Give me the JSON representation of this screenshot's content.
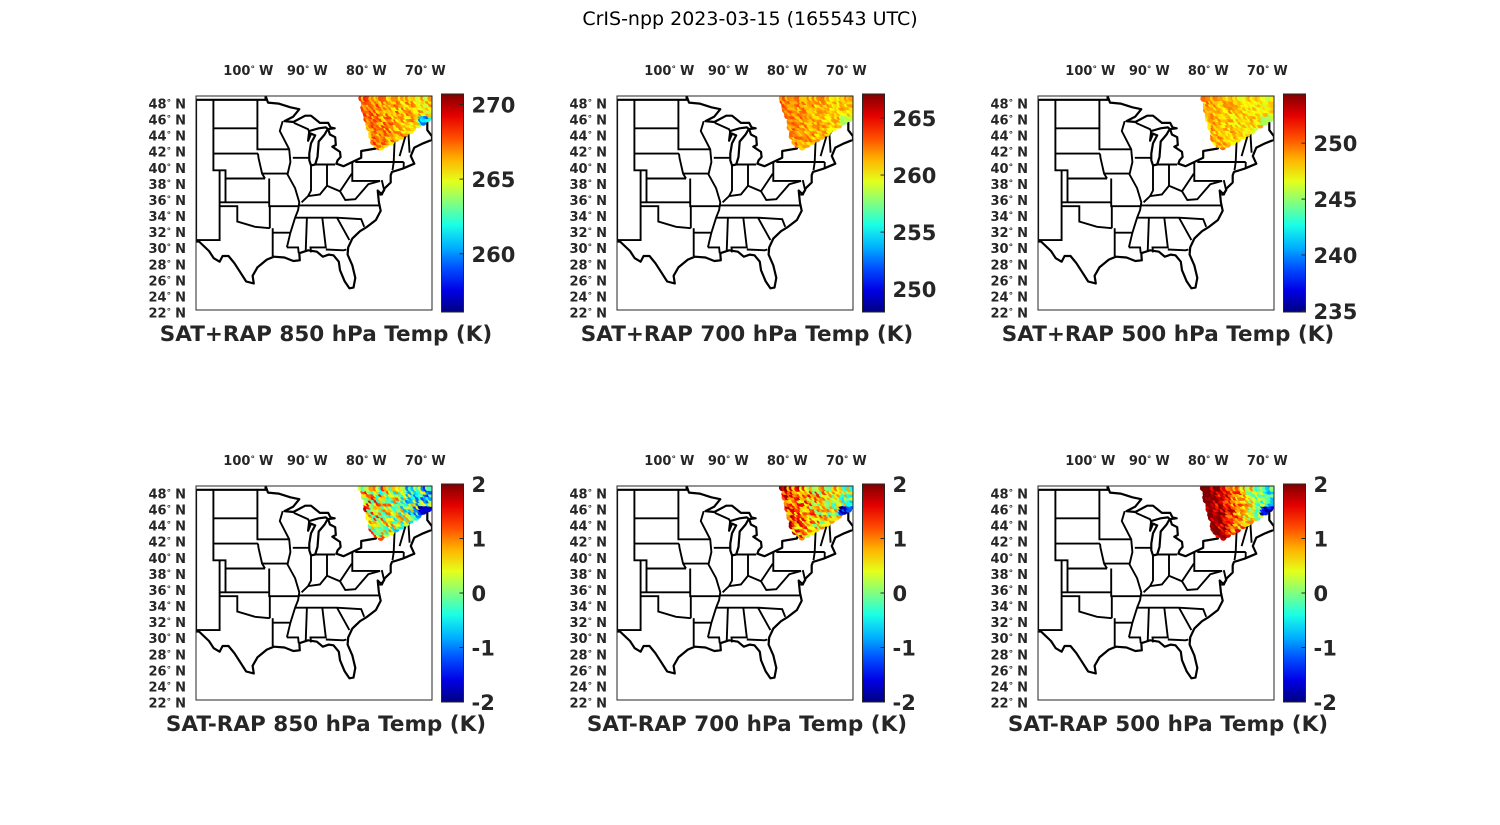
{
  "figure_title": "CrIS-npp 2023-03-15 (165543 UTC)",
  "chart_data": [
    {
      "type": "map",
      "title": "SAT+RAP 850 hPa Temp (K)",
      "clim": [
        256.1,
        270.7
      ],
      "ticks": [
        "260",
        "265",
        "270"
      ],
      "tick_values": [
        260,
        265,
        270
      ],
      "swath": {
        "west_value": 267.5,
        "east_value": 265.5,
        "spread": 1.5,
        "east_edge_low": 259
      }
    },
    {
      "type": "map",
      "title": "SAT+RAP 700 hPa Temp (K)",
      "clim": [
        248.0,
        267.1
      ],
      "ticks": [
        "250",
        "255",
        "260",
        "265"
      ],
      "tick_values": [
        250,
        255,
        260,
        265
      ],
      "swath": {
        "west_value": 262.5,
        "east_value": 260.5,
        "spread": 1.5,
        "east_edge_low": 258
      }
    },
    {
      "type": "map",
      "title": "SAT+RAP 500 hPa Temp (K)",
      "clim": [
        234.9,
        254.4
      ],
      "ticks": [
        "235",
        "240",
        "245",
        "250"
      ],
      "tick_values": [
        235,
        240,
        245,
        250
      ],
      "swath": {
        "west_value": 249,
        "east_value": 247,
        "spread": 1.5,
        "east_edge_low": 245
      }
    },
    {
      "type": "map",
      "title": "SAT-RAP 850 hPa Temp (K)",
      "clim": [
        -2,
        2
      ],
      "ticks": [
        "-2",
        "-1",
        "0",
        "1",
        "2"
      ],
      "tick_values": [
        -2,
        -1,
        0,
        1,
        2
      ],
      "swath": {
        "west_value": 0.9,
        "east_value": -0.5,
        "spread": 1.0,
        "east_edge_low": -2
      }
    },
    {
      "type": "map",
      "title": "SAT-RAP 700 hPa Temp (K)",
      "clim": [
        -2,
        2
      ],
      "ticks": [
        "-2",
        "-1",
        "0",
        "1",
        "2"
      ],
      "tick_values": [
        -2,
        -1,
        0,
        1,
        2
      ],
      "swath": {
        "west_value": 1.4,
        "east_value": 0.0,
        "spread": 0.8,
        "east_edge_low": -2
      }
    },
    {
      "type": "map",
      "title": "SAT-RAP 500 hPa Temp (K)",
      "clim": [
        -2,
        2
      ],
      "ticks": [
        "-2",
        "-1",
        "0",
        "1",
        "2"
      ],
      "tick_values": [
        -2,
        -1,
        0,
        1,
        2
      ],
      "swath": {
        "west_value": 2.5,
        "east_value": -0.5,
        "spread": 0.6,
        "east_edge_low": -2
      }
    }
  ],
  "axes": {
    "lon_ticks": [
      {
        "value": -100,
        "label": "100",
        "hemi": "W"
      },
      {
        "value": -90,
        "label": "90",
        "hemi": "W"
      },
      {
        "value": -80,
        "label": "80",
        "hemi": "W"
      },
      {
        "value": -70,
        "label": "70",
        "hemi": "W"
      }
    ],
    "lat_ticks": [
      {
        "value": 48,
        "label": "48"
      },
      {
        "value": 46,
        "label": "46"
      },
      {
        "value": 44,
        "label": "44"
      },
      {
        "value": 42,
        "label": "42"
      },
      {
        "value": 40,
        "label": "40"
      },
      {
        "value": 38,
        "label": "38"
      },
      {
        "value": 36,
        "label": "36"
      },
      {
        "value": 34,
        "label": "34"
      },
      {
        "value": 32,
        "label": "32"
      },
      {
        "value": 30,
        "label": "30"
      },
      {
        "value": 28,
        "label": "28"
      },
      {
        "value": 26,
        "label": "26"
      },
      {
        "value": 24,
        "label": "24"
      },
      {
        "value": 22,
        "label": "22"
      }
    ],
    "lat_hemi": "N",
    "degree_symbol": "°",
    "lon_range": [
      -107,
      -67
    ],
    "lat_range": [
      22,
      49.4
    ]
  },
  "colors": {
    "border": "#000000",
    "label": "#262626",
    "colormap": "jet"
  }
}
